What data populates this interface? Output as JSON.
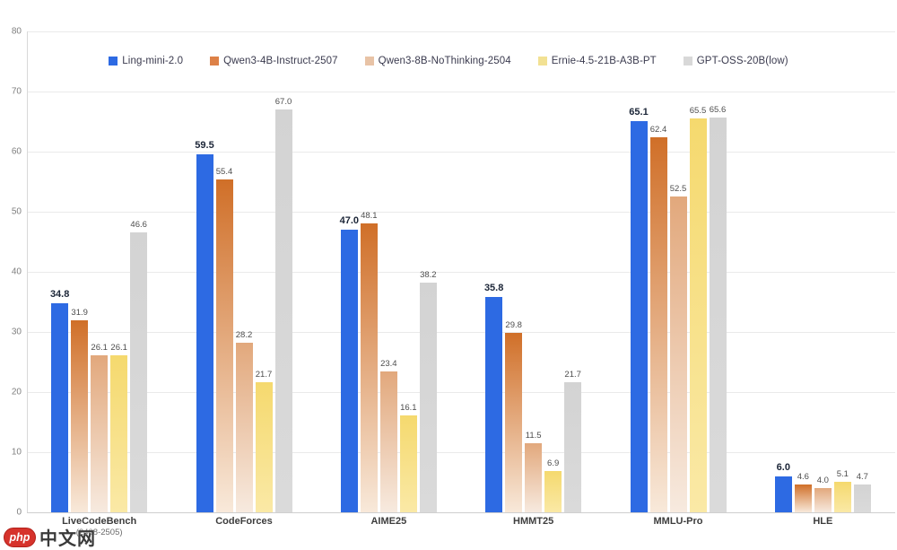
{
  "watermark": {
    "badge": "php",
    "site": "中文网"
  },
  "chart_data": {
    "type": "bar",
    "title": "",
    "xlabel": "",
    "ylabel": "",
    "ylim": [
      0,
      80
    ],
    "yticks": [
      0,
      10,
      20,
      30,
      40,
      50,
      60,
      70,
      80
    ],
    "grid": true,
    "legend_position": "top",
    "categories": [
      {
        "label": "LiveCodeBench",
        "sublabel": "(2408-2505)"
      },
      {
        "label": "CodeForces",
        "sublabel": ""
      },
      {
        "label": "AIME25",
        "sublabel": ""
      },
      {
        "label": "HMMT25",
        "sublabel": ""
      },
      {
        "label": "MMLU-Pro",
        "sublabel": ""
      },
      {
        "label": "HLE",
        "sublabel": ""
      }
    ],
    "series": [
      {
        "name": "Ling-mini-2.0",
        "values": [
          34.8,
          59.5,
          47.0,
          35.8,
          65.1,
          6.0
        ],
        "color_top": "#2d6ae3",
        "color_bottom": "#2d6ae3",
        "legend_color": "#2d6ae3",
        "emphasis": true
      },
      {
        "name": "Qwen3-4B-Instruct-2507",
        "values": [
          31.9,
          55.4,
          48.1,
          29.8,
          62.4,
          4.6
        ],
        "color_top": "#d06f28",
        "color_bottom": "#f8e9da",
        "legend_color": "#dd8147",
        "emphasis": false
      },
      {
        "name": "Qwen3-8B-NoThinking-2504",
        "values": [
          26.1,
          28.2,
          23.4,
          11.5,
          52.5,
          4.0
        ],
        "color_top": "#e2a87c",
        "color_bottom": "#f7eadf",
        "legend_color": "#e8c3a6",
        "emphasis": false
      },
      {
        "name": "Ernie-4.5-21B-A3B-PT",
        "values": [
          26.1,
          21.7,
          16.1,
          6.9,
          65.5,
          5.1
        ],
        "color_top": "#f5d96e",
        "color_bottom": "#fae9a6",
        "legend_color": "#f2e193",
        "emphasis": false
      },
      {
        "name": "GPT-OSS-20B(low)",
        "values": [
          46.6,
          67.0,
          38.2,
          21.7,
          65.6,
          4.7
        ],
        "color_top": "#d3d3d3",
        "color_bottom": "#dadada",
        "legend_color": "#d8d8d8",
        "emphasis": false
      }
    ]
  }
}
